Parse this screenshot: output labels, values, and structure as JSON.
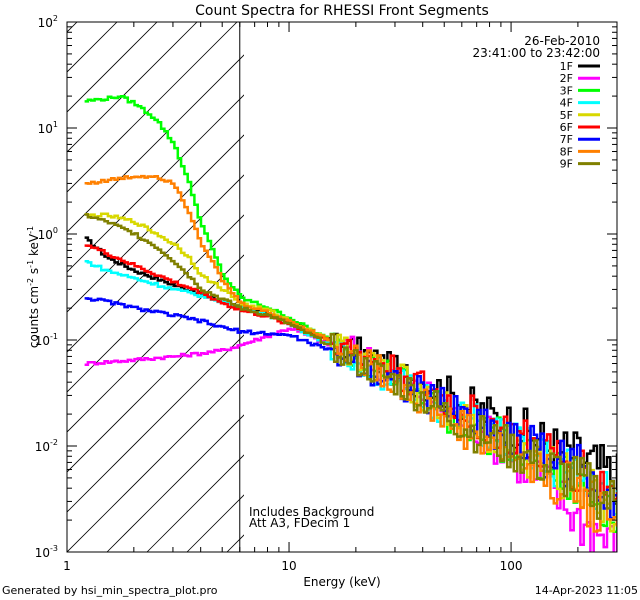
{
  "chart_data": {
    "type": "line",
    "title": "Count Spectra for RHESSI Front Segments",
    "xlabel": "Energy (keV)",
    "ylabel": "counts cm",
    "ylabel_sup1": "-2",
    "ylabel_mid": " s",
    "ylabel_sup2": "-1",
    "ylabel_end": " keV",
    "ylabel_sup3": "-1",
    "xscale": "log",
    "yscale": "log",
    "xlim": [
      1,
      300
    ],
    "ylim": [
      0.001,
      100
    ],
    "x_ticks": [
      {
        "value": 1,
        "label": "1"
      },
      {
        "value": 10,
        "label": "10"
      },
      {
        "value": 100,
        "label": "100"
      }
    ],
    "y_ticks": [
      {
        "value": 100,
        "base": "10",
        "exp": "2"
      },
      {
        "value": 10,
        "base": "10",
        "exp": "1"
      },
      {
        "value": 1,
        "base": "10",
        "exp": "0"
      },
      {
        "value": 0.1,
        "base": "10",
        "exp": "-1"
      },
      {
        "value": 0.01,
        "base": "10",
        "exp": "-2"
      },
      {
        "value": 0.001,
        "base": "10",
        "exp": "-3"
      }
    ],
    "shaded_region": {
      "x_min": 1.2,
      "x_max": 6.0,
      "pattern": "diagonal hatch"
    },
    "annotations": {
      "date": "26-Feb-2010",
      "time_range": "23:41:00 to 23:42:00",
      "note1": "Includes Background",
      "note2": "Att A3, FDecim 1"
    },
    "footer": {
      "left": "Generated by hsi_min_spectra_plot.pro",
      "right": "14-Apr-2023 11:05"
    },
    "series": [
      {
        "name": "1F",
        "color": "#000000",
        "x": [
          1.2,
          1.5,
          2,
          3,
          4,
          5,
          6,
          8,
          10,
          15,
          20,
          30,
          40,
          50,
          70,
          100,
          150,
          200,
          250,
          300
        ],
        "y": [
          0.9,
          0.6,
          0.45,
          0.33,
          0.27,
          0.23,
          0.2,
          0.175,
          0.15,
          0.1,
          0.08,
          0.05,
          0.04,
          0.032,
          0.022,
          0.016,
          0.01,
          0.008,
          0.006,
          0.005
        ]
      },
      {
        "name": "2F",
        "color": "#ff00ff",
        "x": [
          1.2,
          1.5,
          2,
          3,
          4,
          5,
          6,
          8,
          10,
          15,
          20,
          30,
          40,
          50,
          70,
          100,
          150,
          200,
          250,
          300
        ],
        "y": [
          0.06,
          0.062,
          0.065,
          0.07,
          0.075,
          0.08,
          0.09,
          0.11,
          0.13,
          0.09,
          0.08,
          0.045,
          0.03,
          0.022,
          0.015,
          0.008,
          0.004,
          0.002,
          0.0015,
          0.001
        ]
      },
      {
        "name": "3F",
        "color": "#00ff00",
        "x": [
          1.2,
          1.5,
          1.7,
          2,
          2.5,
          3,
          3.5,
          4,
          5,
          6,
          8,
          10,
          15,
          20,
          30,
          40,
          50,
          70,
          100,
          150,
          200,
          250,
          300
        ],
        "y": [
          18,
          19,
          20,
          17,
          12,
          7,
          3,
          1.2,
          0.4,
          0.25,
          0.2,
          0.16,
          0.1,
          0.07,
          0.045,
          0.03,
          0.02,
          0.015,
          0.01,
          0.006,
          0.004,
          0.0032,
          0.0022
        ]
      },
      {
        "name": "4F",
        "color": "#00ffff",
        "x": [
          1.2,
          1.5,
          2,
          3,
          4,
          5,
          6,
          8,
          10,
          15,
          20,
          30,
          40,
          50,
          70,
          100,
          150,
          200,
          250,
          300
        ],
        "y": [
          0.55,
          0.45,
          0.38,
          0.3,
          0.26,
          0.23,
          0.2,
          0.17,
          0.14,
          0.09,
          0.06,
          0.04,
          0.03,
          0.022,
          0.016,
          0.011,
          0.007,
          0.005,
          0.004,
          0.003
        ]
      },
      {
        "name": "5F",
        "color": "#d8d800",
        "x": [
          1.2,
          1.5,
          2,
          2.5,
          3,
          3.5,
          4,
          5,
          6,
          8,
          10,
          15,
          20,
          30,
          40,
          50,
          70,
          100,
          150,
          200,
          250,
          300
        ],
        "y": [
          1.5,
          1.5,
          1.3,
          1.0,
          0.8,
          0.6,
          0.4,
          0.3,
          0.22,
          0.19,
          0.15,
          0.1,
          0.07,
          0.045,
          0.03,
          0.022,
          0.014,
          0.009,
          0.006,
          0.004,
          0.003,
          0.0022
        ]
      },
      {
        "name": "6F",
        "color": "#ff0000",
        "x": [
          1.2,
          1.5,
          2,
          3,
          4,
          5,
          6,
          8,
          10,
          15,
          20,
          30,
          40,
          50,
          70,
          100,
          150,
          200,
          250,
          300
        ],
        "y": [
          0.8,
          0.65,
          0.5,
          0.35,
          0.28,
          0.22,
          0.19,
          0.165,
          0.14,
          0.1,
          0.075,
          0.05,
          0.035,
          0.026,
          0.018,
          0.012,
          0.008,
          0.006,
          0.0045,
          0.0035
        ]
      },
      {
        "name": "7F",
        "color": "#0000ff",
        "x": [
          1.2,
          1.5,
          2,
          3,
          4,
          5,
          6,
          8,
          10,
          15,
          20,
          30,
          40,
          50,
          70,
          100,
          150,
          200,
          250,
          300
        ],
        "y": [
          0.25,
          0.23,
          0.2,
          0.17,
          0.15,
          0.13,
          0.12,
          0.115,
          0.11,
          0.08,
          0.06,
          0.04,
          0.03,
          0.024,
          0.017,
          0.012,
          0.008,
          0.006,
          0.0045,
          0.0035
        ]
      },
      {
        "name": "8F",
        "color": "#ff8000",
        "x": [
          1.2,
          1.5,
          2,
          2.5,
          3,
          3.5,
          4,
          5,
          6,
          8,
          10,
          15,
          20,
          30,
          40,
          50,
          70,
          100,
          150,
          200,
          250,
          300
        ],
        "y": [
          3.0,
          3.2,
          3.5,
          3.5,
          3.0,
          1.6,
          0.8,
          0.35,
          0.22,
          0.18,
          0.15,
          0.1,
          0.07,
          0.04,
          0.026,
          0.018,
          0.012,
          0.008,
          0.005,
          0.0035,
          0.0025,
          0.002
        ]
      },
      {
        "name": "9F",
        "color": "#808000",
        "x": [
          1.2,
          1.5,
          2,
          2.5,
          3,
          3.5,
          4,
          5,
          6,
          8,
          10,
          15,
          20,
          30,
          40,
          50,
          70,
          100,
          150,
          200,
          250,
          300
        ],
        "y": [
          1.5,
          1.3,
          1.0,
          0.75,
          0.55,
          0.4,
          0.3,
          0.24,
          0.2,
          0.17,
          0.14,
          0.09,
          0.06,
          0.04,
          0.028,
          0.02,
          0.013,
          0.009,
          0.006,
          0.0045,
          0.0035,
          0.0026
        ]
      }
    ]
  }
}
